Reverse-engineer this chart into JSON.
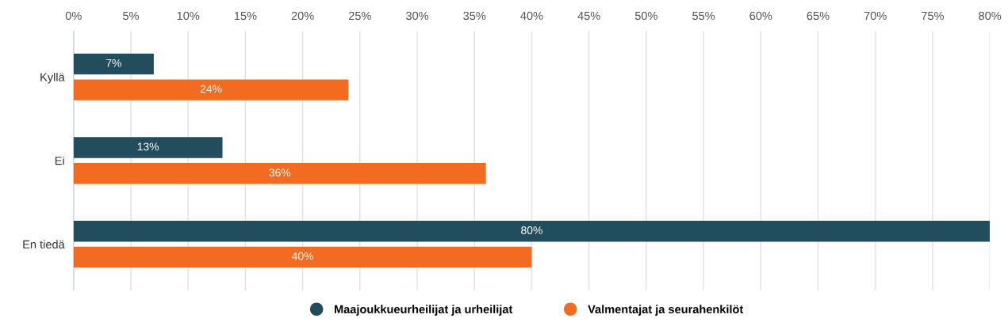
{
  "chart_data": {
    "type": "bar",
    "orientation": "horizontal",
    "categories": [
      "Kyllä",
      "Ei",
      "En tiedä"
    ],
    "series": [
      {
        "name": "Maajoukkueurheilijat ja urheilijat",
        "color": "#214d5c",
        "values": [
          7,
          13,
          80
        ],
        "value_labels": [
          "7%",
          "13%",
          "80%"
        ]
      },
      {
        "name": "Valmentajat ja seurahenkilöt",
        "color": "#f26b21",
        "values": [
          24,
          36,
          40
        ],
        "value_labels": [
          "24%",
          "36%",
          "40%"
        ]
      }
    ],
    "xlim": [
      0,
      80
    ],
    "xticks": [
      {
        "value": 0,
        "label": "0%"
      },
      {
        "value": 5,
        "label": "5%"
      },
      {
        "value": 10,
        "label": "10%"
      },
      {
        "value": 15,
        "label": "15%"
      },
      {
        "value": 20,
        "label": "20%"
      },
      {
        "value": 25,
        "label": "25%"
      },
      {
        "value": 30,
        "label": "30%"
      },
      {
        "value": 35,
        "label": "35%"
      },
      {
        "value": 40,
        "label": "40%"
      },
      {
        "value": 45,
        "label": "45%"
      },
      {
        "value": 50,
        "label": "50%"
      },
      {
        "value": 55,
        "label": "55%"
      },
      {
        "value": 60,
        "label": "60%"
      },
      {
        "value": 65,
        "label": "65%"
      },
      {
        "value": 70,
        "label": "70%"
      },
      {
        "value": 75,
        "label": "75%"
      },
      {
        "value": 80,
        "label": "80%"
      }
    ],
    "grid": "x",
    "legend": "bottom",
    "marker": "circle"
  }
}
